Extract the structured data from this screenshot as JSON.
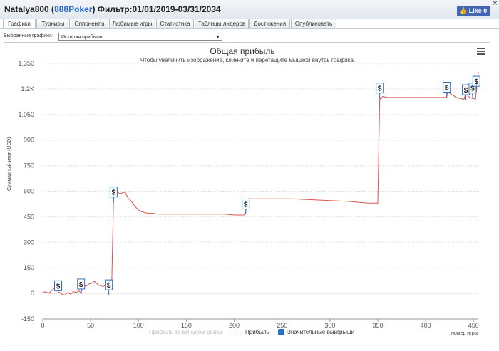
{
  "header": {
    "player": "Natalya800",
    "room": "888Poker",
    "filter": "Фильтр:01/01/2019-03/31/2034",
    "fb_like": "Like 0",
    "close": "×"
  },
  "tabs": [
    "Графики",
    "Турниры",
    "Оппоненты",
    "Любимые игры",
    "Статистика",
    "Таблицы лидеров",
    "Достижения",
    "Опубликовать"
  ],
  "selector": {
    "label": "Выбранные графики:",
    "value": "История прибыли"
  },
  "chart_data": {
    "type": "line",
    "title": "Общая прибыль",
    "subtitle": "Чтобы увеличить изображение, кликните и перетащите мышкой внутрь графика.",
    "xlabel": "номер игры",
    "ylabel": "Суммарный итог (USD)",
    "xlim": [
      0,
      455
    ],
    "ylim": [
      -150,
      1350
    ],
    "x_ticks": [
      "0",
      "50",
      "100",
      "150",
      "200",
      "250",
      "300",
      "350",
      "400",
      "450"
    ],
    "y_ticks": [
      "-150",
      "0",
      "150",
      "300",
      "450",
      "600",
      "750",
      "900",
      "1,050",
      "1.2K",
      "1,350"
    ],
    "grid": true,
    "legend": "bottom",
    "series": [
      {
        "name": "Прибыль",
        "color": "#d9534f",
        "x": [
          0,
          3,
          6,
          9,
          12,
          14,
          16,
          18,
          20,
          23,
          26,
          29,
          32,
          35,
          38,
          40,
          42,
          45,
          48,
          51,
          54,
          57,
          60,
          63,
          66,
          68,
          70,
          72,
          74,
          76,
          78,
          80,
          83,
          86,
          89,
          92,
          95,
          98,
          100,
          103,
          106,
          110,
          115,
          120,
          130,
          140,
          150,
          160,
          170,
          180,
          190,
          200,
          210,
          212,
          213,
          215,
          220,
          230,
          240,
          260,
          280,
          300,
          320,
          330,
          340,
          350,
          352,
          353,
          355,
          360,
          380,
          400,
          410,
          422,
          423,
          425,
          428,
          432,
          435,
          440,
          442,
          444,
          446,
          449,
          452,
          453,
          455
        ],
        "y": [
          5,
          10,
          0,
          15,
          30,
          45,
          10,
          5,
          -5,
          -10,
          5,
          -5,
          10,
          5,
          15,
          0,
          55,
          40,
          55,
          60,
          70,
          55,
          45,
          40,
          50,
          35,
          30,
          45,
          590,
          580,
          600,
          585,
          590,
          595,
          560,
          545,
          520,
          500,
          490,
          480,
          475,
          470,
          470,
          465,
          465,
          465,
          465,
          465,
          465,
          465,
          465,
          460,
          460,
          475,
          540,
          555,
          555,
          555,
          555,
          555,
          550,
          545,
          540,
          535,
          530,
          530,
          1150,
          1140,
          1155,
          1150,
          1150,
          1150,
          1150,
          1150,
          1190,
          1175,
          1165,
          1150,
          1145,
          1140,
          1175,
          1160,
          1150,
          1145,
          1140,
          1190,
          1300
        ]
      },
      {
        "name": "Прибыль за минусом рейка",
        "color": "#cccccc"
      },
      {
        "name": "Значительные выигрыши",
        "color": "#2a6fc9",
        "symbol": "$",
        "x": [
          16,
          40,
          69,
          74,
          212,
          352,
          422,
          442,
          449,
          453
        ],
        "y": [
          45,
          55,
          50,
          595,
          525,
          1205,
          1210,
          1195,
          1205,
          1245
        ]
      }
    ]
  }
}
